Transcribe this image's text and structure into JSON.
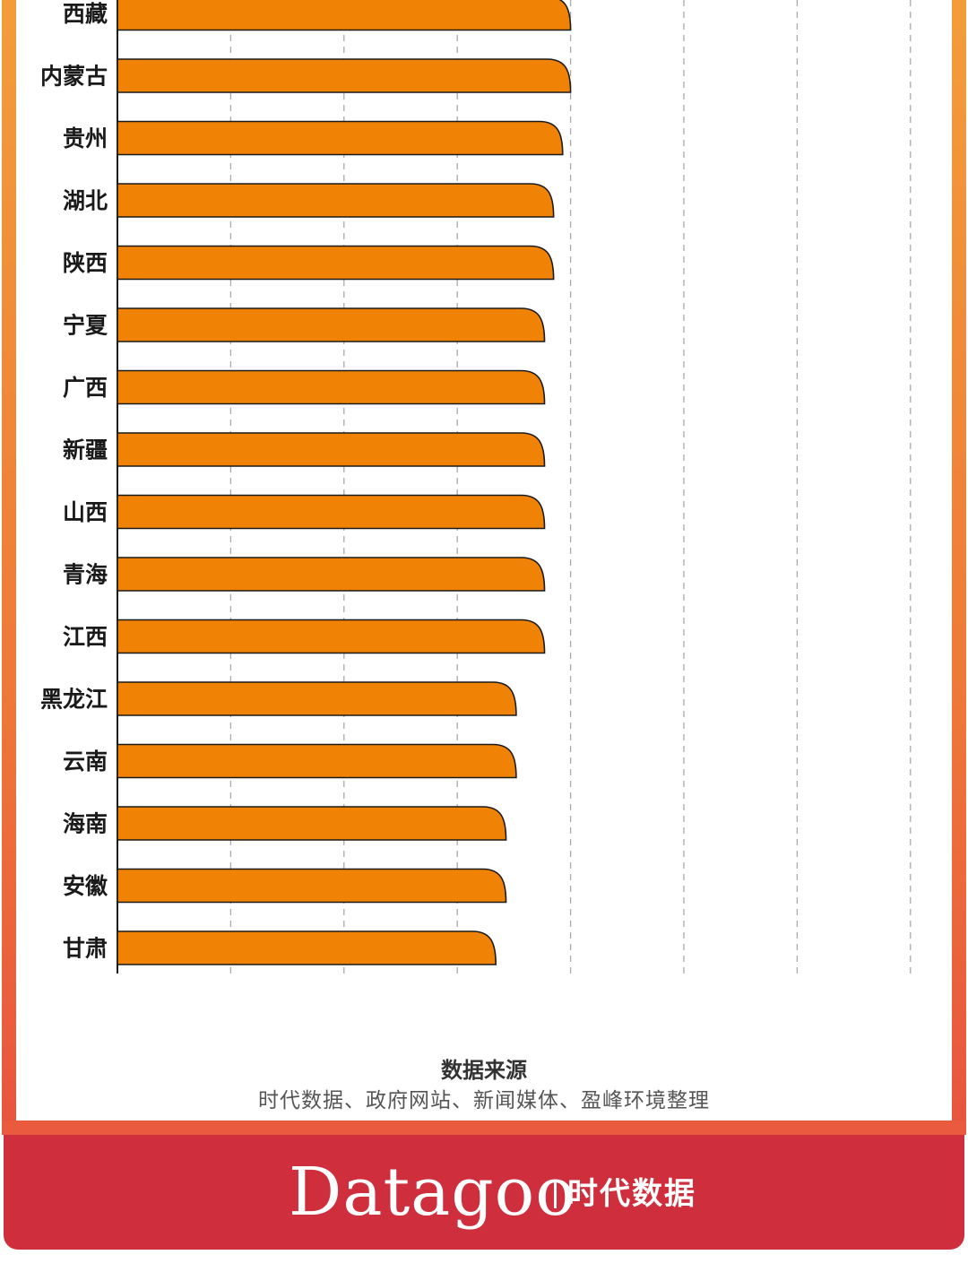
{
  "chart_data": {
    "type": "bar",
    "orientation": "horizontal",
    "categories": [
      "西藏",
      "内蒙古",
      "贵州",
      "湖北",
      "陕西",
      "宁夏",
      "广西",
      "新疆",
      "山西",
      "青海",
      "江西",
      "黑龙江",
      "云南",
      "海南",
      "安徽",
      "甘肃"
    ],
    "values": [
      4.0,
      4.0,
      3.93,
      3.85,
      3.85,
      3.77,
      3.77,
      3.77,
      3.77,
      3.77,
      3.77,
      3.52,
      3.52,
      3.43,
      3.43,
      3.34
    ],
    "xlim": [
      0,
      7
    ],
    "gridlines_x": [
      1,
      2,
      3,
      4,
      5,
      6,
      7
    ],
    "grid": "vertical dashed",
    "bar_color": "#f08205",
    "bar_outline_color": "#1a1a1a",
    "grid_color": "#aaaaaa",
    "title": "",
    "xlabel": "",
    "ylabel": ""
  },
  "source": {
    "title": "数据来源",
    "text": "时代数据、政府网站、新闻媒体、盈峰环境整理"
  },
  "footer": {
    "brand_latin": "Datagoo",
    "brand_cn": "时代数据",
    "background": "#cf2f3c"
  },
  "frame": {
    "border_color": "#ee7a38"
  }
}
